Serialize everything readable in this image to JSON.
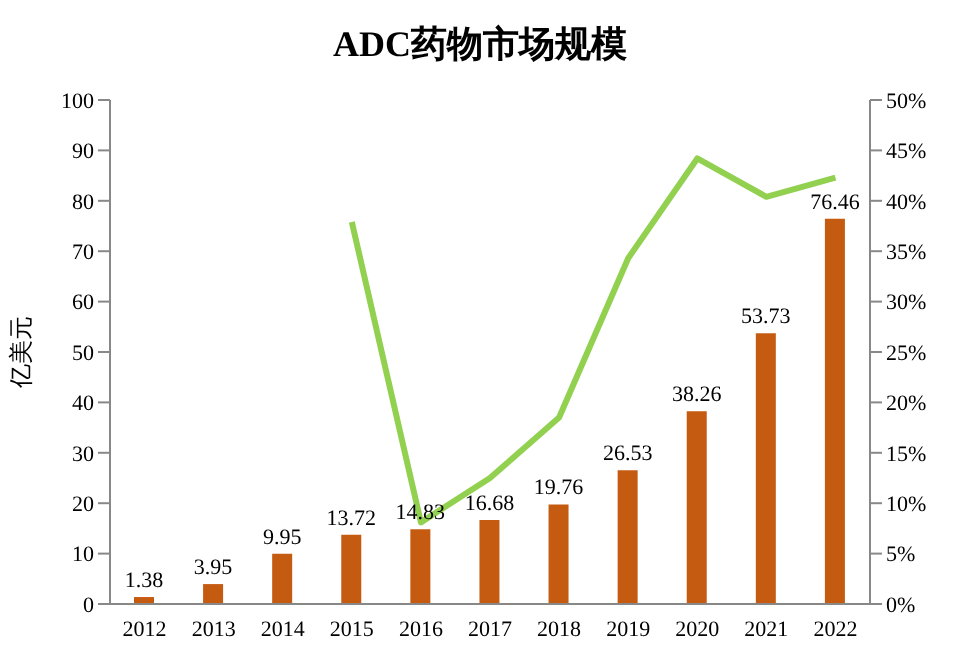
{
  "chart_data": {
    "type": "bar",
    "title": "ADC药物市场规模",
    "ylabel": "亿美元",
    "categories": [
      "2012",
      "2013",
      "2014",
      "2015",
      "2016",
      "2017",
      "2018",
      "2019",
      "2020",
      "2021",
      "2022"
    ],
    "series": [
      {
        "color": "#c55a11",
        "values": [
          1.38,
          3.95,
          9.95,
          13.72,
          14.83,
          16.68,
          19.76,
          26.53,
          38.26,
          53.73,
          76.46
        ],
        "value_labels": [
          "1.38",
          "3.95",
          "9.95",
          "13.72",
          "14.83",
          "16.68",
          "19.76",
          "26.53",
          "38.26",
          "53.73",
          "76.46"
        ]
      },
      {
        "type": "line",
        "axis": "y2",
        "color": "#92d050",
        "values": [
          null,
          null,
          null,
          37.9,
          8.1,
          12.5,
          18.5,
          34.3,
          44.2,
          40.4,
          42.3
        ]
      }
    ],
    "grid": false,
    "legend": false,
    "marker": "none",
    "line_style": "solid",
    "ylim": [
      0,
      100
    ],
    "yticks": [
      0,
      10,
      20,
      30,
      40,
      50,
      60,
      70,
      80,
      90,
      100
    ],
    "y2lim": [
      0,
      50
    ],
    "y2ticks": [
      {
        "value": 0,
        "label": "0%"
      },
      {
        "value": 5,
        "label": "5%"
      },
      {
        "value": 10,
        "label": "10%"
      },
      {
        "value": 15,
        "label": "15%"
      },
      {
        "value": 20,
        "label": "20%"
      },
      {
        "value": 25,
        "label": "25%"
      },
      {
        "value": 30,
        "label": "30%"
      },
      {
        "value": 35,
        "label": "35%"
      },
      {
        "value": 40,
        "label": "40%"
      },
      {
        "value": 45,
        "label": "45%"
      },
      {
        "value": 50,
        "label": "50%"
      }
    ]
  }
}
